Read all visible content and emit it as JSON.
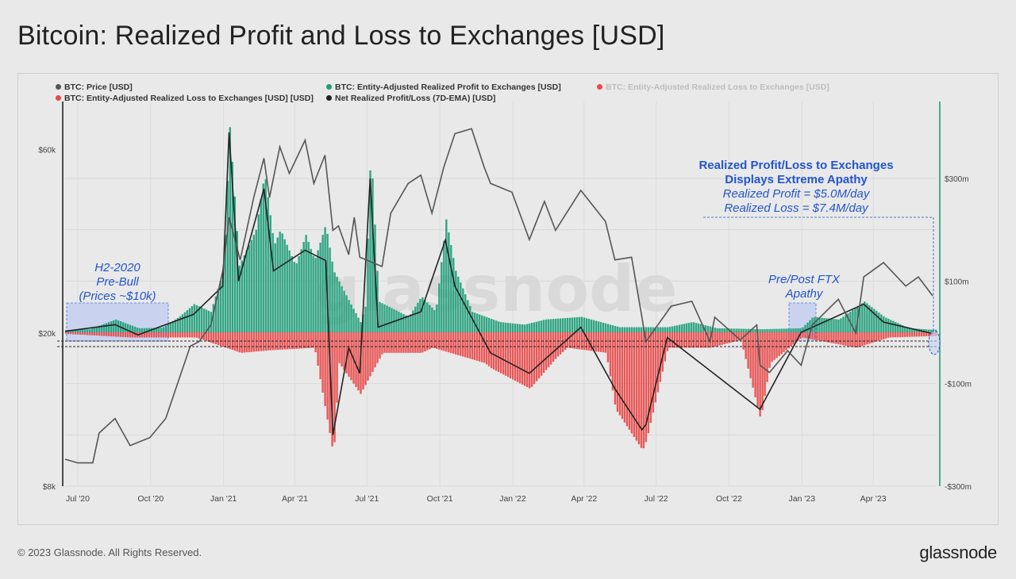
{
  "title": "Bitcoin: Realized Profit and Loss to Exchanges [USD]",
  "footer": {
    "copyright": "© 2023 Glassnode. All Rights Reserved.",
    "logo": "glassnode"
  },
  "watermark": "glassnode",
  "legend": [
    {
      "label": "BTC: Price [USD]",
      "color": "#555555",
      "muted": false
    },
    {
      "label": "BTC: Entity-Adjusted Realized Profit to Exchanges [USD]",
      "color": "#1f9e78",
      "muted": false
    },
    {
      "label": "BTC: Entity-Adjusted Realized Loss to Exchanges [USD]",
      "color": "#e84a4a",
      "muted": true
    },
    {
      "label": "BTC: Entity-Adjusted Realized Loss to Exchanges [USD] [USD]",
      "color": "#e84a4a",
      "muted": false
    },
    {
      "label": "Net Realized Profit/Loss (7D-EMA) [USD]",
      "color": "#222222",
      "muted": false
    }
  ],
  "annotations": {
    "h2_2020": [
      "H2-2020",
      "Pre-Bull",
      "(Prices ~$10k)"
    ],
    "ftx": [
      "Pre/Post FTX",
      "Apathy"
    ],
    "apathy_title": [
      "Realized Profit/Loss to Exchanges",
      "Displays Extreme Apathy"
    ],
    "apathy_values": [
      "Realized Profit = $5.0M/day",
      "Realized Loss = $7.4M/day"
    ]
  },
  "chart_data": {
    "type": "line",
    "x_axis": {
      "range": [
        "2020-06-15",
        "2023-06-20"
      ],
      "tick_labels": [
        "Jul '20",
        "Oct '20",
        "Jan '21",
        "Apr '21",
        "Jul '21",
        "Oct '21",
        "Jan '22",
        "Apr '22",
        "Jul '22",
        "Oct '22",
        "Jan '23",
        "Apr '23"
      ],
      "tick_dates": [
        "2020-07-01",
        "2020-10-01",
        "2021-01-01",
        "2021-04-01",
        "2021-07-01",
        "2021-10-01",
        "2022-01-01",
        "2022-04-01",
        "2022-07-01",
        "2022-10-01",
        "2023-01-01",
        "2023-04-01"
      ]
    },
    "y_left": {
      "scale": "log",
      "range": [
        8000,
        80000
      ],
      "tick_labels": [
        "$8k",
        "$20k",
        "$60k"
      ],
      "tick_values": [
        8000,
        20000,
        60000
      ]
    },
    "y_right": {
      "scale": "linear",
      "range": [
        -300000000,
        450000000
      ],
      "tick_labels": [
        "-$300m",
        "-$100m",
        "$100m",
        "$300m"
      ],
      "tick_values": [
        -300000000,
        -100000000,
        100000000,
        300000000
      ]
    },
    "series": [
      {
        "name": "BTC: Price [USD]",
        "axis": "left",
        "color": "#555555",
        "points": [
          [
            "2020-06-15",
            9400
          ],
          [
            "2020-07-01",
            9200
          ],
          [
            "2020-07-20",
            9200
          ],
          [
            "2020-07-28",
            11000
          ],
          [
            "2020-08-17",
            12000
          ],
          [
            "2020-09-05",
            10200
          ],
          [
            "2020-09-30",
            10700
          ],
          [
            "2020-10-20",
            12000
          ],
          [
            "2020-11-05",
            15000
          ],
          [
            "2020-11-20",
            18500
          ],
          [
            "2020-12-01",
            19000
          ],
          [
            "2020-12-16",
            21000
          ],
          [
            "2020-12-31",
            29000
          ],
          [
            "2021-01-08",
            40000
          ],
          [
            "2021-01-22",
            31000
          ],
          [
            "2021-02-08",
            45000
          ],
          [
            "2021-02-21",
            57000
          ],
          [
            "2021-02-28",
            45000
          ],
          [
            "2021-03-13",
            61000
          ],
          [
            "2021-03-25",
            52000
          ],
          [
            "2021-04-14",
            63500
          ],
          [
            "2021-04-25",
            49000
          ],
          [
            "2021-05-09",
            58000
          ],
          [
            "2021-05-19",
            37000
          ],
          [
            "2021-05-26",
            38000
          ],
          [
            "2021-06-08",
            32000
          ],
          [
            "2021-06-15",
            40000
          ],
          [
            "2021-06-22",
            31500
          ],
          [
            "2021-07-20",
            29800
          ],
          [
            "2021-07-31",
            41000
          ],
          [
            "2021-08-22",
            49000
          ],
          [
            "2021-09-07",
            51500
          ],
          [
            "2021-09-21",
            41000
          ],
          [
            "2021-10-06",
            54000
          ],
          [
            "2021-10-20",
            66000
          ],
          [
            "2021-11-10",
            68000
          ],
          [
            "2021-11-26",
            54000
          ],
          [
            "2021-12-04",
            49000
          ],
          [
            "2021-12-31",
            46500
          ],
          [
            "2022-01-22",
            35000
          ],
          [
            "2022-02-10",
            44000
          ],
          [
            "2022-02-24",
            37000
          ],
          [
            "2022-03-28",
            47000
          ],
          [
            "2022-04-28",
            39000
          ],
          [
            "2022-05-10",
            31000
          ],
          [
            "2022-05-31",
            31500
          ],
          [
            "2022-06-13",
            22000
          ],
          [
            "2022-06-18",
            19000
          ],
          [
            "2022-07-20",
            23500
          ],
          [
            "2022-08-15",
            24200
          ],
          [
            "2022-09-07",
            19000
          ],
          [
            "2022-09-13",
            22000
          ],
          [
            "2022-10-15",
            19200
          ],
          [
            "2022-11-05",
            21000
          ],
          [
            "2022-11-09",
            16500
          ],
          [
            "2022-11-21",
            15800
          ],
          [
            "2022-12-14",
            18000
          ],
          [
            "2022-12-31",
            16500
          ],
          [
            "2023-01-14",
            21000
          ],
          [
            "2023-02-16",
            24500
          ],
          [
            "2023-03-10",
            20000
          ],
          [
            "2023-03-20",
            28000
          ],
          [
            "2023-04-14",
            30500
          ],
          [
            "2023-05-12",
            26500
          ],
          [
            "2023-05-28",
            28000
          ],
          [
            "2023-06-15",
            25000
          ]
        ]
      },
      {
        "name": "BTC: Entity-Adjusted Realized Profit to Exchanges [USD]",
        "axis": "right",
        "color": "#1f9e78",
        "points": [
          [
            "2020-06-15",
            4000000
          ],
          [
            "2020-07-15",
            6000000
          ],
          [
            "2020-08-17",
            25000000
          ],
          [
            "2020-09-15",
            8000000
          ],
          [
            "2020-10-15",
            9000000
          ],
          [
            "2020-11-05",
            30000000
          ],
          [
            "2020-11-24",
            55000000
          ],
          [
            "2020-12-15",
            40000000
          ],
          [
            "2020-12-31",
            120000000
          ],
          [
            "2021-01-08",
            400000000
          ],
          [
            "2021-01-20",
            130000000
          ],
          [
            "2021-02-10",
            200000000
          ],
          [
            "2021-02-21",
            310000000
          ],
          [
            "2021-03-05",
            170000000
          ],
          [
            "2021-03-13",
            200000000
          ],
          [
            "2021-04-01",
            130000000
          ],
          [
            "2021-04-14",
            190000000
          ],
          [
            "2021-04-25",
            140000000
          ],
          [
            "2021-05-09",
            210000000
          ],
          [
            "2021-05-19",
            120000000
          ],
          [
            "2021-06-08",
            60000000
          ],
          [
            "2021-06-22",
            20000000
          ],
          [
            "2021-06-28",
            50000000
          ],
          [
            "2021-07-05",
            360000000
          ],
          [
            "2021-07-15",
            60000000
          ],
          [
            "2021-08-22",
            30000000
          ],
          [
            "2021-09-07",
            70000000
          ],
          [
            "2021-09-25",
            40000000
          ],
          [
            "2021-10-08",
            220000000
          ],
          [
            "2021-10-20",
            120000000
          ],
          [
            "2021-11-10",
            40000000
          ],
          [
            "2021-12-15",
            20000000
          ],
          [
            "2022-01-15",
            15000000
          ],
          [
            "2022-02-10",
            25000000
          ],
          [
            "2022-03-28",
            30000000
          ],
          [
            "2022-05-15",
            10000000
          ],
          [
            "2022-07-15",
            10000000
          ],
          [
            "2022-08-15",
            20000000
          ],
          [
            "2022-09-15",
            8000000
          ],
          [
            "2022-11-10",
            6000000
          ],
          [
            "2022-12-31",
            8000000
          ],
          [
            "2023-01-14",
            30000000
          ],
          [
            "2023-02-16",
            25000000
          ],
          [
            "2023-03-20",
            60000000
          ],
          [
            "2023-04-14",
            30000000
          ],
          [
            "2023-05-15",
            8000000
          ],
          [
            "2023-06-15",
            5000000
          ]
        ]
      },
      {
        "name": "BTC: Entity-Adjusted Realized Loss to Exchanges [USD] [USD]",
        "axis": "right",
        "color": "#e84a4a",
        "points": [
          [
            "2020-06-15",
            -3000000
          ],
          [
            "2020-09-05",
            -10000000
          ],
          [
            "2020-11-26",
            -10000000
          ],
          [
            "2021-01-22",
            -40000000
          ],
          [
            "2021-02-28",
            -35000000
          ],
          [
            "2021-04-25",
            -30000000
          ],
          [
            "2021-05-19",
            -240000000
          ],
          [
            "2021-05-26",
            -60000000
          ],
          [
            "2021-06-22",
            -120000000
          ],
          [
            "2021-07-20",
            -40000000
          ],
          [
            "2021-09-07",
            -40000000
          ],
          [
            "2021-09-21",
            -30000000
          ],
          [
            "2021-11-26",
            -60000000
          ],
          [
            "2021-12-04",
            -70000000
          ],
          [
            "2022-01-22",
            -110000000
          ],
          [
            "2022-02-24",
            -50000000
          ],
          [
            "2022-03-10",
            -30000000
          ],
          [
            "2022-04-28",
            -40000000
          ],
          [
            "2022-05-10",
            -150000000
          ],
          [
            "2022-06-13",
            -230000000
          ],
          [
            "2022-06-18",
            -210000000
          ],
          [
            "2022-07-15",
            -30000000
          ],
          [
            "2022-09-07",
            -30000000
          ],
          [
            "2022-10-15",
            -15000000
          ],
          [
            "2022-11-09",
            -170000000
          ],
          [
            "2022-11-21",
            -60000000
          ],
          [
            "2022-12-31",
            -10000000
          ],
          [
            "2023-03-10",
            -30000000
          ],
          [
            "2023-04-20",
            -10000000
          ],
          [
            "2023-06-15",
            -7400000
          ]
        ]
      },
      {
        "name": "Net Realized Profit/Loss (7D-EMA) [USD]",
        "axis": "right",
        "color": "#222222",
        "points": [
          [
            "2020-06-15",
            2000000
          ],
          [
            "2020-08-17",
            15000000
          ],
          [
            "2020-09-15",
            -5000000
          ],
          [
            "2020-11-24",
            35000000
          ],
          [
            "2020-12-31",
            90000000
          ],
          [
            "2021-01-08",
            390000000
          ],
          [
            "2021-01-20",
            100000000
          ],
          [
            "2021-02-21",
            280000000
          ],
          [
            "2021-03-05",
            120000000
          ],
          [
            "2021-04-14",
            160000000
          ],
          [
            "2021-05-10",
            140000000
          ],
          [
            "2021-05-19",
            -200000000
          ],
          [
            "2021-06-08",
            -30000000
          ],
          [
            "2021-06-22",
            -80000000
          ],
          [
            "2021-07-05",
            300000000
          ],
          [
            "2021-07-15",
            10000000
          ],
          [
            "2021-09-07",
            40000000
          ],
          [
            "2021-10-08",
            180000000
          ],
          [
            "2021-10-20",
            90000000
          ],
          [
            "2021-12-04",
            -40000000
          ],
          [
            "2022-01-22",
            -80000000
          ],
          [
            "2022-03-28",
            10000000
          ],
          [
            "2022-05-10",
            -110000000
          ],
          [
            "2022-06-13",
            -190000000
          ],
          [
            "2022-06-18",
            -180000000
          ],
          [
            "2022-07-15",
            -10000000
          ],
          [
            "2022-11-09",
            -150000000
          ],
          [
            "2022-12-31",
            0
          ],
          [
            "2023-03-20",
            55000000
          ],
          [
            "2023-04-14",
            20000000
          ],
          [
            "2023-06-15",
            -2400000
          ]
        ]
      }
    ]
  }
}
